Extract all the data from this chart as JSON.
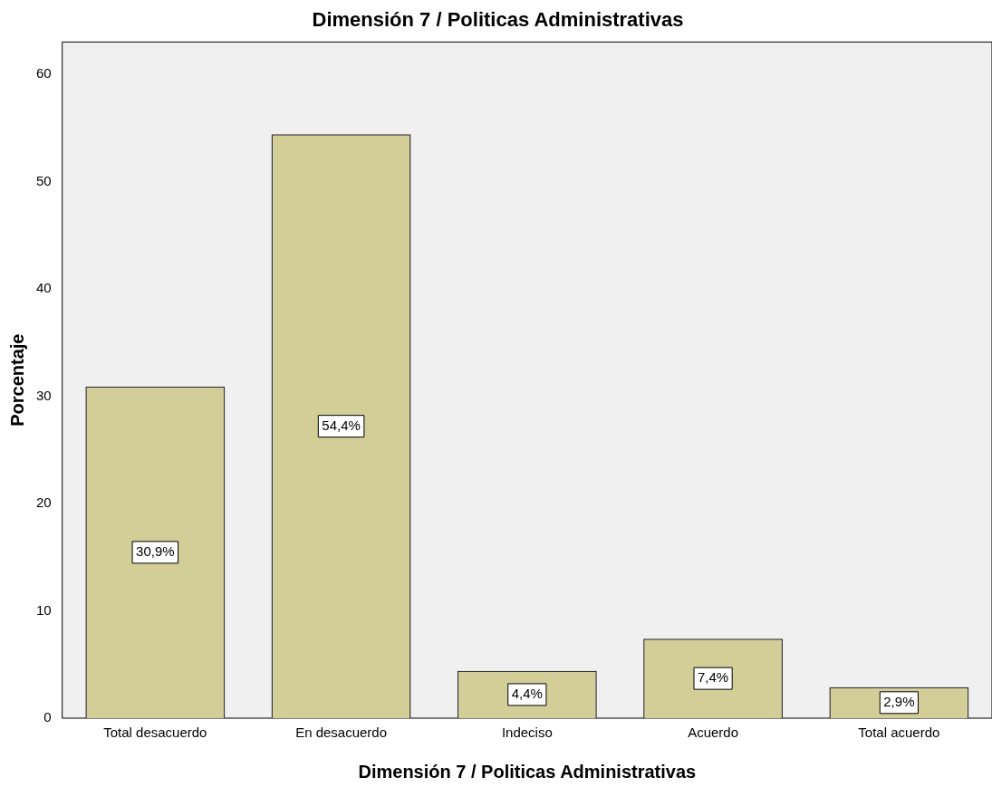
{
  "chart_data": {
    "type": "bar",
    "title": "Dimensión 7 / Politicas Administrativas",
    "xlabel": "Dimensión 7 / Politicas Administrativas",
    "ylabel": "Porcentaje",
    "categories": [
      "Total desacuerdo",
      "En desacuerdo",
      "Indeciso",
      "Acuerdo",
      "Total acuerdo"
    ],
    "values": [
      30.9,
      54.4,
      4.4,
      7.4,
      2.9
    ],
    "value_labels": [
      "30,9%",
      "54,4%",
      "4,4%",
      "7,4%",
      "2,9%"
    ],
    "color": "#d3ce97",
    "ylim": [
      0,
      63
    ],
    "yticks": [
      0,
      10,
      20,
      30,
      40,
      50,
      60
    ],
    "grid": false,
    "legend": false
  }
}
